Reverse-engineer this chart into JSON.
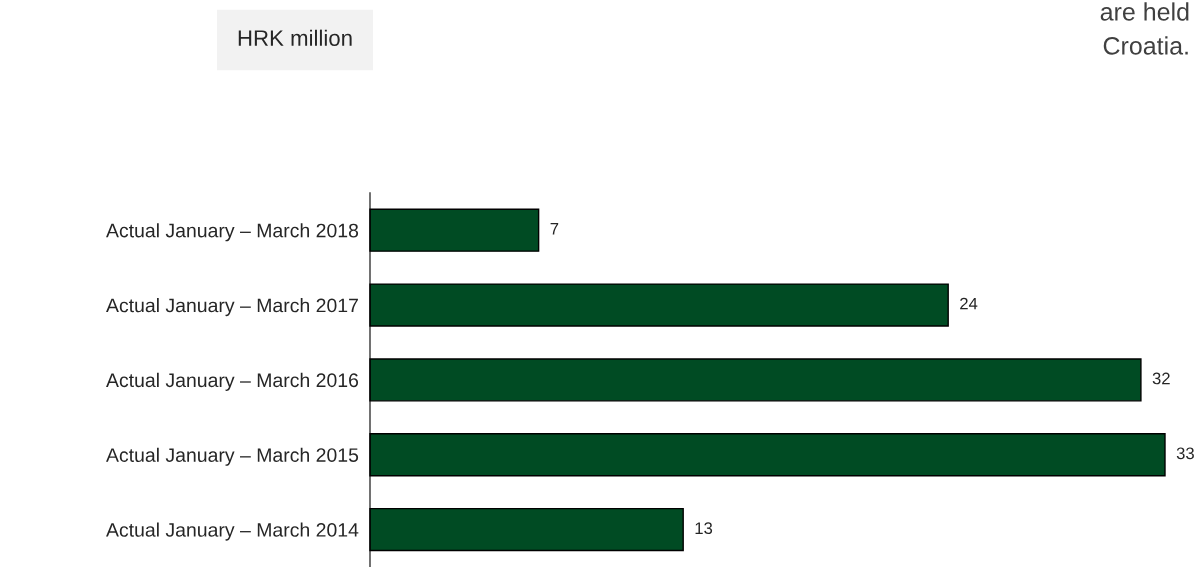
{
  "chart_data": {
    "type": "bar",
    "orientation": "horizontal",
    "title": "HRK million",
    "categories": [
      "Actual January – March 2018",
      "Actual January – March 2017",
      "Actual January – March 2016",
      "Actual January – March 2015",
      "Actual January – March 2014"
    ],
    "values": [
      7,
      24,
      32,
      33,
      13
    ],
    "color": "#004b23",
    "data_labels": true,
    "tick_labels": "y",
    "grid": false,
    "legend": false,
    "annotations": [
      "are held",
      "Croatia."
    ]
  }
}
